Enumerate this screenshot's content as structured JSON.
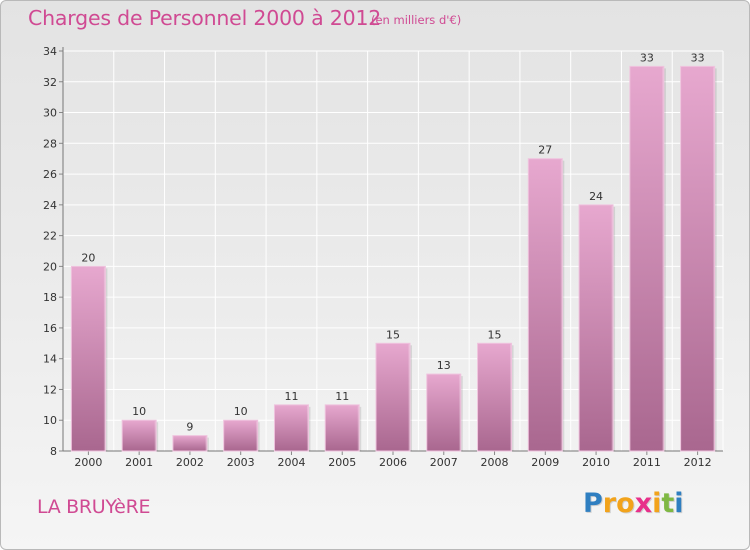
{
  "title": "Charges de Personnel 2000 à 2012",
  "unit": "(en milliers d'€)",
  "location": "LA BRUYèRE",
  "logo": {
    "text": "Proxiti",
    "letters": [
      "P",
      "r",
      "o",
      "x",
      "i",
      "t",
      "i"
    ],
    "colors": [
      "#2f7fc1",
      "#f2a31b",
      "#f2a31b",
      "#e8308a",
      "#f2a31b",
      "#7fb843",
      "#2f7fc1"
    ]
  },
  "chart_data": {
    "type": "bar",
    "categories": [
      "2000",
      "2001",
      "2002",
      "2003",
      "2004",
      "2005",
      "2006",
      "2007",
      "2008",
      "2009",
      "2010",
      "2011",
      "2012"
    ],
    "values": [
      20,
      10,
      9,
      10,
      11,
      11,
      15,
      13,
      15,
      27,
      24,
      33,
      33
    ],
    "ylim": [
      8,
      34
    ],
    "yticks": [
      8,
      10,
      12,
      14,
      16,
      18,
      20,
      22,
      24,
      26,
      28,
      30,
      32,
      34
    ],
    "grid": true,
    "bar_color": "#d88fbc"
  }
}
